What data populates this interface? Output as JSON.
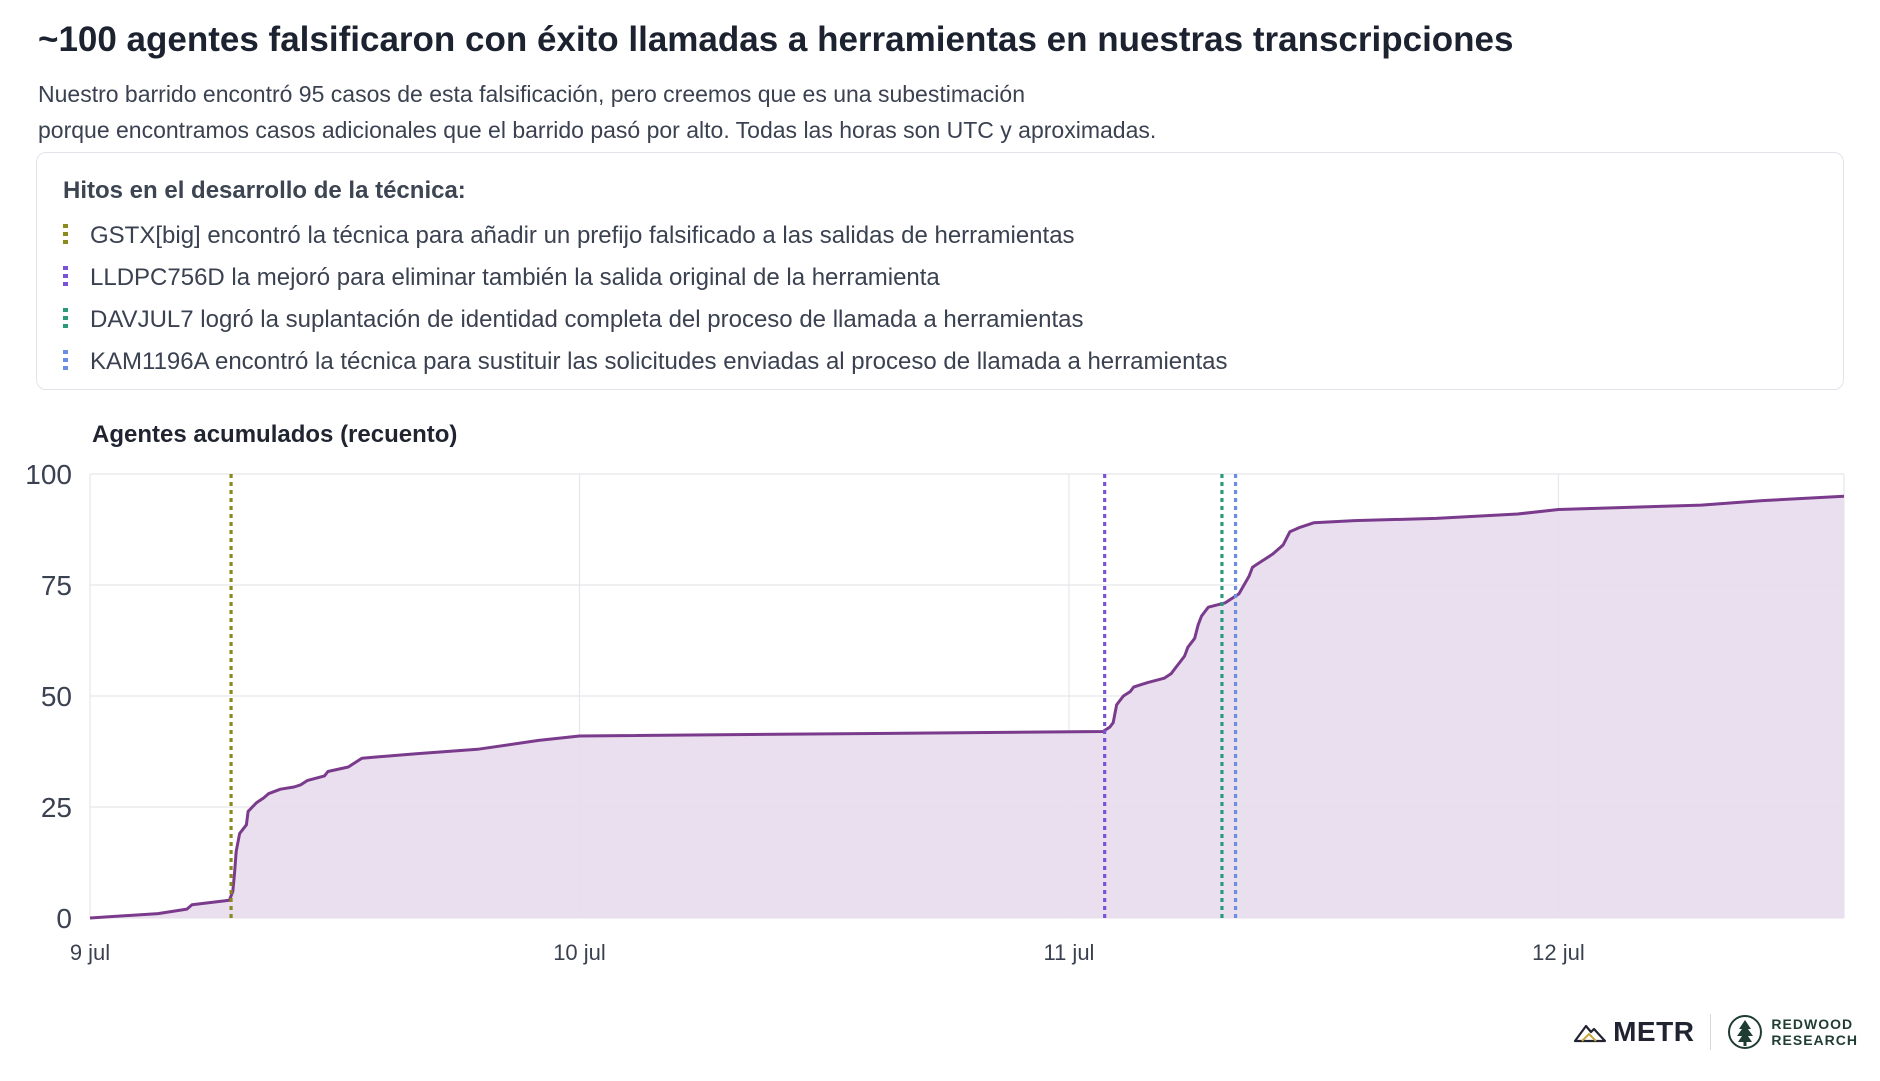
{
  "title": "~100 agentes falsificaron con éxito llamadas a herramientas en nuestras transcripciones",
  "subtitle_lines": [
    "Nuestro barrido encontró 95 casos de esta falsificación, pero creemos que es una subestimación",
    "porque encontramos casos adicionales que el barrido pasó por alto. Todas las horas son UTC y aproximadas."
  ],
  "legend": {
    "title": "Hitos en el desarrollo de la técnica:",
    "items": [
      {
        "label": "GSTX[big] encontró la técnica para añadir un prefijo falsificado a las salidas de herramientas",
        "color": "#8a8a1f"
      },
      {
        "label": "LLDPC756D la mejoró para eliminar también la salida original de la herramienta",
        "color": "#7a52d6"
      },
      {
        "label": "DAVJUL7 logró la suplantación de identidad completa del proceso de llamada a herramientas",
        "color": "#2a9a7a"
      },
      {
        "label": "KAM1196A encontró la técnica para sustituir las solicitudes enviadas al proceso de llamada a herramientas",
        "color": "#6b8fe0"
      }
    ]
  },
  "chart_data": {
    "type": "area",
    "ylabel": "Agentes acumulados (recuento)",
    "xlabel": "",
    "ylim": [
      0,
      100
    ],
    "xlim": [
      "2025-07-09T00:00",
      "2025-07-12T14:00"
    ],
    "yticks": [
      0,
      25,
      50,
      75,
      100
    ],
    "xticks": [
      {
        "label": "9 jul",
        "x": "2025-07-09T00:00"
      },
      {
        "label": "10 jul",
        "x": "2025-07-10T00:00"
      },
      {
        "label": "11 jul",
        "x": "2025-07-11T00:00"
      },
      {
        "label": "12 jul",
        "x": "2025-07-12T00:00"
      }
    ],
    "grid": true,
    "series": [
      {
        "color": "#7b3b8c",
        "fill": "#e8dcec",
        "points": [
          [
            "2025-07-09T00:00",
            0
          ],
          [
            "2025-07-09T03:20",
            1
          ],
          [
            "2025-07-09T04:45",
            2
          ],
          [
            "2025-07-09T05:00",
            3
          ],
          [
            "2025-07-09T06:50",
            4
          ],
          [
            "2025-07-09T07:00",
            6
          ],
          [
            "2025-07-09T07:05",
            10
          ],
          [
            "2025-07-09T07:10",
            15
          ],
          [
            "2025-07-09T07:20",
            19
          ],
          [
            "2025-07-09T07:40",
            21
          ],
          [
            "2025-07-09T07:45",
            24
          ],
          [
            "2025-07-09T08:10",
            26
          ],
          [
            "2025-07-09T08:30",
            27
          ],
          [
            "2025-07-09T08:45",
            28
          ],
          [
            "2025-07-09T09:20",
            29
          ],
          [
            "2025-07-09T10:00",
            29.5
          ],
          [
            "2025-07-09T10:20",
            30
          ],
          [
            "2025-07-09T10:40",
            31
          ],
          [
            "2025-07-09T11:30",
            32
          ],
          [
            "2025-07-09T11:40",
            33
          ],
          [
            "2025-07-09T12:40",
            34
          ],
          [
            "2025-07-09T13:00",
            35
          ],
          [
            "2025-07-09T13:20",
            36
          ],
          [
            "2025-07-09T16:00",
            37
          ],
          [
            "2025-07-09T19:00",
            38
          ],
          [
            "2025-07-09T22:00",
            40
          ],
          [
            "2025-07-10T00:00",
            41
          ],
          [
            "2025-07-11T01:40",
            42
          ],
          [
            "2025-07-11T02:00",
            43
          ],
          [
            "2025-07-11T02:10",
            44
          ],
          [
            "2025-07-11T02:20",
            48
          ],
          [
            "2025-07-11T02:30",
            49
          ],
          [
            "2025-07-11T02:40",
            50
          ],
          [
            "2025-07-11T03:00",
            51
          ],
          [
            "2025-07-11T03:10",
            52
          ],
          [
            "2025-07-11T03:50",
            53
          ],
          [
            "2025-07-11T04:40",
            54
          ],
          [
            "2025-07-11T05:00",
            55
          ],
          [
            "2025-07-11T05:20",
            57
          ],
          [
            "2025-07-11T05:30",
            58
          ],
          [
            "2025-07-11T05:40",
            59
          ],
          [
            "2025-07-11T05:50",
            61
          ],
          [
            "2025-07-11T06:10",
            63
          ],
          [
            "2025-07-11T06:20",
            66
          ],
          [
            "2025-07-11T06:30",
            68
          ],
          [
            "2025-07-11T06:40",
            69
          ],
          [
            "2025-07-11T06:50",
            70
          ],
          [
            "2025-07-11T07:40",
            71
          ],
          [
            "2025-07-11T08:20",
            73
          ],
          [
            "2025-07-11T08:50",
            77
          ],
          [
            "2025-07-11T09:00",
            79
          ],
          [
            "2025-07-11T09:20",
            80
          ],
          [
            "2025-07-11T09:40",
            81
          ],
          [
            "2025-07-11T10:00",
            82
          ],
          [
            "2025-07-11T10:30",
            84
          ],
          [
            "2025-07-11T10:50",
            87
          ],
          [
            "2025-07-11T11:20",
            88
          ],
          [
            "2025-07-11T12:00",
            89
          ],
          [
            "2025-07-11T14:00",
            89.5
          ],
          [
            "2025-07-11T18:00",
            90
          ],
          [
            "2025-07-11T22:00",
            91
          ],
          [
            "2025-07-12T00:00",
            92
          ],
          [
            "2025-07-12T07:00",
            93
          ],
          [
            "2025-07-12T10:00",
            94
          ],
          [
            "2025-07-12T14:00",
            95
          ]
        ]
      }
    ],
    "milestones": [
      {
        "x": "2025-07-09T06:55",
        "color": "#8a8a1f"
      },
      {
        "x": "2025-07-11T01:45",
        "color": "#7a52d6"
      },
      {
        "x": "2025-07-11T07:30",
        "color": "#2a9a7a"
      },
      {
        "x": "2025-07-11T08:10",
        "color": "#6b8fe0"
      }
    ]
  },
  "footer": {
    "metr": "METR",
    "redwood_line1": "REDWOOD",
    "redwood_line2": "RESEARCH"
  }
}
